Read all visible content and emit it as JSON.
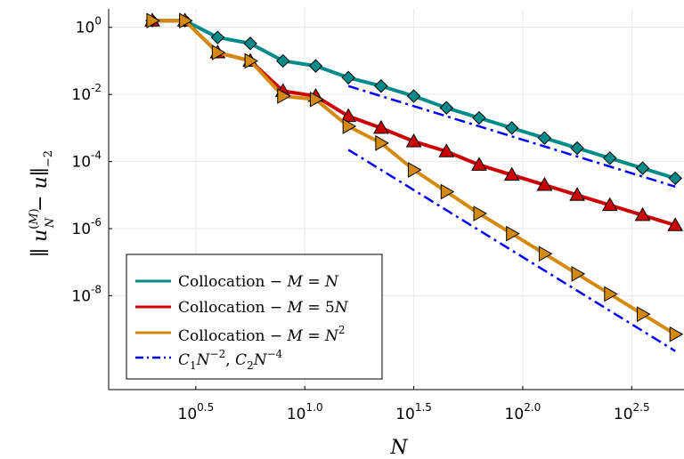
{
  "chart_data": {
    "type": "line",
    "xscale": "log10",
    "yscale": "log10",
    "xlim": [
      0.1,
      2.74
    ],
    "ylim": [
      -10.8,
      0.55
    ],
    "xticks": [
      {
        "pos": 0.5,
        "base": "10",
        "exp": "0.5"
      },
      {
        "pos": 1.0,
        "base": "10",
        "exp": "1.0"
      },
      {
        "pos": 1.5,
        "base": "10",
        "exp": "1.5"
      },
      {
        "pos": 2.0,
        "base": "10",
        "exp": "2.0"
      },
      {
        "pos": 2.5,
        "base": "10",
        "exp": "2.5"
      }
    ],
    "yticks": [
      {
        "pos": 0,
        "base": "10",
        "exp": "0"
      },
      {
        "pos": -2,
        "base": "10",
        "exp": "-2"
      },
      {
        "pos": -4,
        "base": "10",
        "exp": "-4"
      },
      {
        "pos": -6,
        "base": "10",
        "exp": "-6"
      },
      {
        "pos": -8,
        "base": "10",
        "exp": "-8"
      }
    ],
    "grid": true,
    "legend_position": "bottom-left",
    "xlabel": "N",
    "series": [
      {
        "name": "Collocation − M = N",
        "color": "#008b8b",
        "marker": "diamond",
        "x": [
          0.3,
          0.45,
          0.6,
          0.75,
          0.9,
          1.05,
          1.2,
          1.35,
          1.5,
          1.65,
          1.8,
          1.95,
          2.1,
          2.25,
          2.4,
          2.55,
          2.7
        ],
        "y": [
          0.2,
          0.2,
          -0.3,
          -0.48,
          -1.0,
          -1.15,
          -1.5,
          -1.75,
          -2.05,
          -2.4,
          -2.7,
          -3.0,
          -3.3,
          -3.6,
          -3.9,
          -4.2,
          -4.5
        ]
      },
      {
        "name": "Collocation − M = 5N",
        "color": "#cc0000",
        "marker": "triangle-up",
        "x": [
          0.3,
          0.45,
          0.6,
          0.75,
          0.9,
          1.05,
          1.2,
          1.35,
          1.5,
          1.65,
          1.8,
          1.95,
          2.1,
          2.25,
          2.4,
          2.55,
          2.7
        ],
        "y": [
          0.2,
          0.2,
          -0.75,
          -1.0,
          -1.9,
          -2.05,
          -2.65,
          -3.0,
          -3.4,
          -3.7,
          -4.1,
          -4.4,
          -4.7,
          -5.0,
          -5.3,
          -5.6,
          -5.9
        ]
      },
      {
        "name": "Collocation − M = N²",
        "color": "#d4890f",
        "marker": "triangle-right",
        "x": [
          0.3,
          0.45,
          0.6,
          0.75,
          0.9,
          1.05,
          1.2,
          1.35,
          1.5,
          1.65,
          1.8,
          1.95,
          2.1,
          2.25,
          2.4,
          2.55,
          2.7
        ],
        "y": [
          0.2,
          0.2,
          -0.75,
          -1.0,
          -2.05,
          -2.15,
          -2.95,
          -3.45,
          -4.25,
          -4.9,
          -5.55,
          -6.15,
          -6.75,
          -7.35,
          -7.95,
          -8.55,
          -9.15
        ]
      },
      {
        "name": "C₁N⁻², C₂N⁻⁴",
        "color": "#0000ff",
        "style": "dash-dot",
        "segments": [
          {
            "x": [
              1.2,
              2.7
            ],
            "y": [
              -1.75,
              -4.75
            ]
          },
          {
            "x": [
              1.2,
              2.7
            ],
            "y": [
              -3.65,
              -9.65
            ]
          }
        ]
      }
    ]
  }
}
